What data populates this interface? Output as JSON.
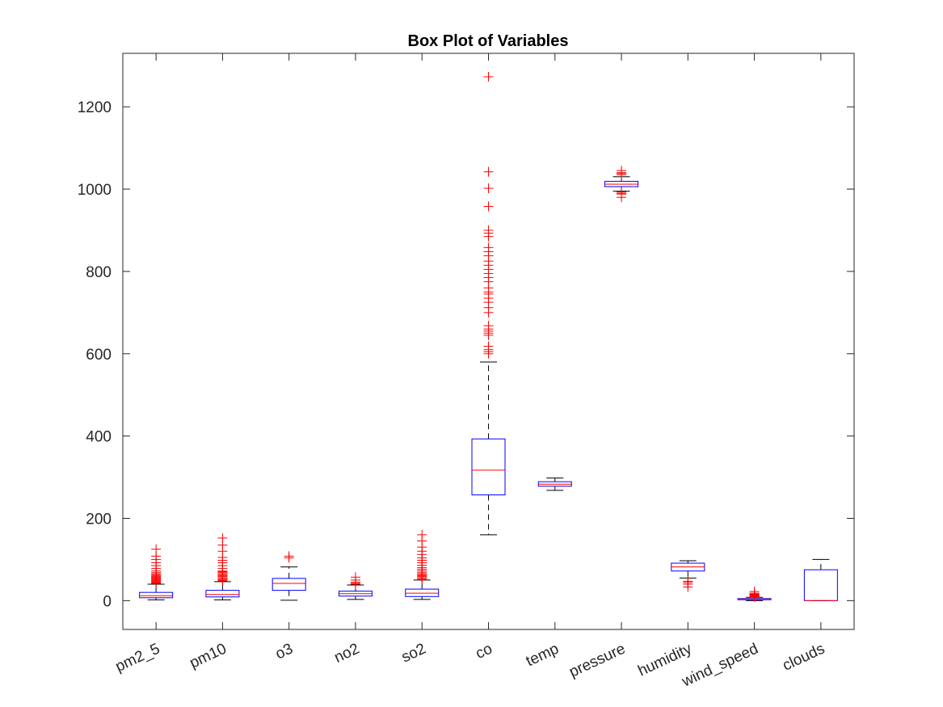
{
  "chart_data": {
    "type": "box",
    "title": "Box Plot of Variables",
    "xlabel": "",
    "ylabel": "",
    "ylim": [
      -70,
      1330
    ],
    "yticks": [
      0,
      200,
      400,
      600,
      800,
      1000,
      1200
    ],
    "grid": false,
    "colors": {
      "box": "#0000ff",
      "median": "#ff0000",
      "whisker": "#000000",
      "outlier": "#ff0000",
      "axis": "#262626"
    },
    "categories": [
      "pm2_5",
      "pm10",
      "o3",
      "no2",
      "so2",
      "co",
      "temp",
      "pressure",
      "humidity",
      "wind_speed",
      "clouds"
    ],
    "boxes": [
      {
        "name": "pm2_5",
        "whisker_low": 2,
        "q1": 7,
        "median": 12,
        "q3": 20,
        "whisker_high": 40,
        "outliers": [
          42,
          44,
          46,
          48,
          50,
          52,
          54,
          56,
          58,
          60,
          62,
          65,
          68,
          72,
          78,
          85,
          92,
          100,
          108,
          125
        ]
      },
      {
        "name": "pm10",
        "whisker_low": 2,
        "q1": 9,
        "median": 15,
        "q3": 25,
        "whisker_high": 46,
        "outliers": [
          48,
          50,
          52,
          55,
          58,
          60,
          62,
          65,
          68,
          70,
          72,
          78,
          85,
          92,
          98,
          105,
          120,
          135,
          152
        ]
      },
      {
        "name": "o3",
        "whisker_low": 1,
        "q1": 25,
        "median": 42,
        "q3": 54,
        "whisker_high": 82,
        "outliers": [
          104,
          108
        ]
      },
      {
        "name": "no2",
        "whisker_low": 3,
        "q1": 11,
        "median": 17,
        "q3": 23,
        "whisker_high": 38,
        "outliers": [
          40,
          42,
          45,
          50,
          57
        ]
      },
      {
        "name": "so2",
        "whisker_low": 3,
        "q1": 10,
        "median": 18,
        "q3": 28,
        "whisker_high": 50,
        "outliers": [
          52,
          55,
          58,
          60,
          62,
          65,
          68,
          72,
          76,
          80,
          86,
          92,
          98,
          104,
          112,
          120,
          130,
          145,
          160
        ]
      },
      {
        "name": "co",
        "whisker_low": 160,
        "q1": 257,
        "median": 317,
        "q3": 393,
        "whisker_high": 580,
        "outliers": [
          600,
          605,
          610,
          618,
          645,
          650,
          655,
          660,
          668,
          700,
          712,
          725,
          735,
          745,
          750,
          760,
          775,
          785,
          795,
          805,
          815,
          825,
          838,
          848,
          858,
          885,
          893,
          900,
          958,
          1002,
          1042,
          1273
        ]
      },
      {
        "name": "temp",
        "whisker_low": 268,
        "q1": 278,
        "median": 283,
        "q3": 289,
        "whisker_high": 298,
        "outliers": []
      },
      {
        "name": "pressure",
        "whisker_low": 995,
        "q1": 1006,
        "median": 1012,
        "q3": 1019,
        "whisker_high": 1030,
        "outliers": [
          980,
          988,
          990,
          993,
          1035,
          1038,
          1040,
          1045
        ]
      },
      {
        "name": "humidity",
        "whisker_low": 55,
        "q1": 72,
        "median": 82,
        "q3": 91,
        "whisker_high": 97,
        "outliers": [
          33,
          40,
          44,
          47
        ]
      },
      {
        "name": "wind_speed",
        "whisker_low": 0,
        "q1": 2,
        "median": 3,
        "q3": 5,
        "whisker_high": 8,
        "outliers": [
          9,
          10,
          11,
          12,
          13,
          14,
          15,
          16,
          18,
          22
        ]
      },
      {
        "name": "clouds",
        "whisker_low": 0,
        "q1": 0,
        "median": 0,
        "q3": 75,
        "whisker_high": 100,
        "outliers": []
      }
    ]
  }
}
